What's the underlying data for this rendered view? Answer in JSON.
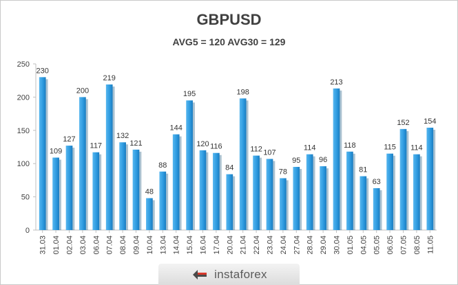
{
  "chart_data": {
    "type": "bar",
    "title": "GBPUSD",
    "subtitle": "AVG5 = 120 AVG30 = 129",
    "categories": [
      "31.03",
      "01.04",
      "02.04",
      "03.04",
      "06.04",
      "07.04",
      "08.04",
      "09.04",
      "10.04",
      "13.04",
      "14.04",
      "15.04",
      "16.04",
      "17.04",
      "20.04",
      "21.04",
      "22.04",
      "23.04",
      "24.04",
      "27.04",
      "28.04",
      "29.04",
      "30.04",
      "01.05",
      "04.05",
      "05.05",
      "06.05",
      "07.05",
      "08.05",
      "11.05"
    ],
    "values": [
      230,
      109,
      127,
      200,
      117,
      219,
      132,
      121,
      48,
      88,
      144,
      195,
      120,
      116,
      84,
      198,
      112,
      107,
      78,
      95,
      114,
      96,
      213,
      118,
      81,
      63,
      115,
      152,
      114,
      154
    ],
    "ylim": [
      0,
      250
    ],
    "yticks": [
      0,
      50,
      100,
      150,
      200,
      250
    ],
    "grid": false,
    "bar_color": "#2e9be0"
  },
  "watermark": {
    "text": "instaforex"
  }
}
